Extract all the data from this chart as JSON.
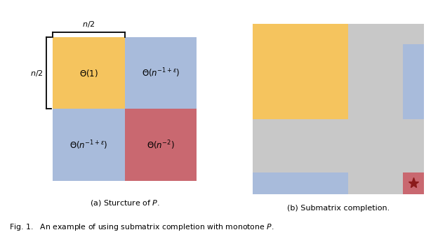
{
  "fig_width": 6.34,
  "fig_height": 3.38,
  "dpi": 100,
  "color_yellow": "#F5C45E",
  "color_blue": "#A8BBDB",
  "color_red": "#C96870",
  "color_gray": "#C8C8C8",
  "color_white": "#FFFFFF",
  "subtitle_a": "(a) Sturcture of $P$.",
  "subtitle_b": "(b) Submatrix completion.",
  "fig_caption": "Fig. 1.   An example of using submatrix completion with monotone $P$.",
  "label_top1": "$\\Theta(1)$",
  "label_top2": "$\\Theta(n^{-1+\\varepsilon})$",
  "label_bot1": "$\\Theta(n^{-1+\\varepsilon})$",
  "label_bot2": "$\\Theta(n^{-2})$",
  "brace_label_top": "$n/2$",
  "brace_label_left": "$n/2$"
}
